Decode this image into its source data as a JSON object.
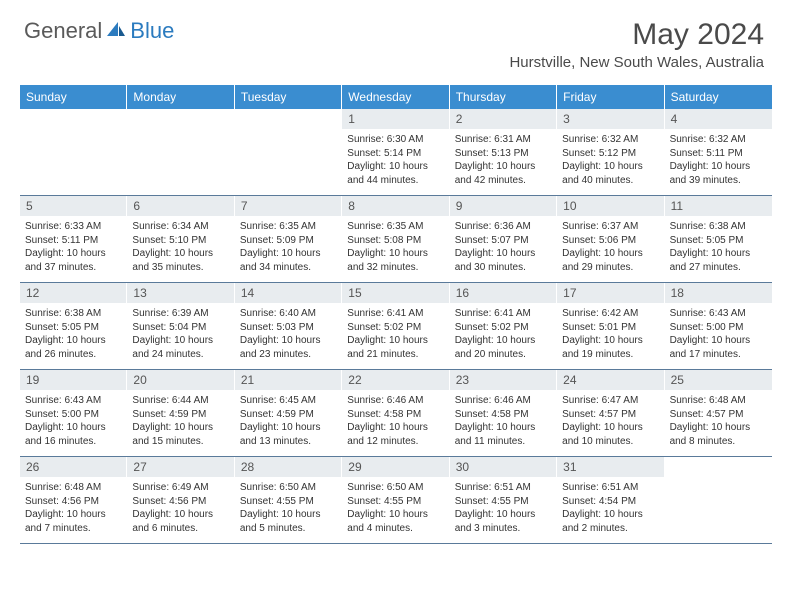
{
  "logo": {
    "text_general": "General",
    "text_blue": "Blue"
  },
  "title": "May 2024",
  "location": "Hurstville, New South Wales, Australia",
  "colors": {
    "header_bg": "#3a8dd0",
    "date_bg": "#e8ecef",
    "row_border": "#5a7a9a",
    "logo_blue": "#2b7bbf",
    "text_gray": "#5a5a5a"
  },
  "day_headers": [
    "Sunday",
    "Monday",
    "Tuesday",
    "Wednesday",
    "Thursday",
    "Friday",
    "Saturday"
  ],
  "weeks": [
    [
      {
        "empty": true
      },
      {
        "empty": true
      },
      {
        "empty": true
      },
      {
        "date": "1",
        "sunrise": "Sunrise: 6:30 AM",
        "sunset": "Sunset: 5:14 PM",
        "daylight1": "Daylight: 10 hours",
        "daylight2": "and 44 minutes."
      },
      {
        "date": "2",
        "sunrise": "Sunrise: 6:31 AM",
        "sunset": "Sunset: 5:13 PM",
        "daylight1": "Daylight: 10 hours",
        "daylight2": "and 42 minutes."
      },
      {
        "date": "3",
        "sunrise": "Sunrise: 6:32 AM",
        "sunset": "Sunset: 5:12 PM",
        "daylight1": "Daylight: 10 hours",
        "daylight2": "and 40 minutes."
      },
      {
        "date": "4",
        "sunrise": "Sunrise: 6:32 AM",
        "sunset": "Sunset: 5:11 PM",
        "daylight1": "Daylight: 10 hours",
        "daylight2": "and 39 minutes."
      }
    ],
    [
      {
        "date": "5",
        "sunrise": "Sunrise: 6:33 AM",
        "sunset": "Sunset: 5:11 PM",
        "daylight1": "Daylight: 10 hours",
        "daylight2": "and 37 minutes."
      },
      {
        "date": "6",
        "sunrise": "Sunrise: 6:34 AM",
        "sunset": "Sunset: 5:10 PM",
        "daylight1": "Daylight: 10 hours",
        "daylight2": "and 35 minutes."
      },
      {
        "date": "7",
        "sunrise": "Sunrise: 6:35 AM",
        "sunset": "Sunset: 5:09 PM",
        "daylight1": "Daylight: 10 hours",
        "daylight2": "and 34 minutes."
      },
      {
        "date": "8",
        "sunrise": "Sunrise: 6:35 AM",
        "sunset": "Sunset: 5:08 PM",
        "daylight1": "Daylight: 10 hours",
        "daylight2": "and 32 minutes."
      },
      {
        "date": "9",
        "sunrise": "Sunrise: 6:36 AM",
        "sunset": "Sunset: 5:07 PM",
        "daylight1": "Daylight: 10 hours",
        "daylight2": "and 30 minutes."
      },
      {
        "date": "10",
        "sunrise": "Sunrise: 6:37 AM",
        "sunset": "Sunset: 5:06 PM",
        "daylight1": "Daylight: 10 hours",
        "daylight2": "and 29 minutes."
      },
      {
        "date": "11",
        "sunrise": "Sunrise: 6:38 AM",
        "sunset": "Sunset: 5:05 PM",
        "daylight1": "Daylight: 10 hours",
        "daylight2": "and 27 minutes."
      }
    ],
    [
      {
        "date": "12",
        "sunrise": "Sunrise: 6:38 AM",
        "sunset": "Sunset: 5:05 PM",
        "daylight1": "Daylight: 10 hours",
        "daylight2": "and 26 minutes."
      },
      {
        "date": "13",
        "sunrise": "Sunrise: 6:39 AM",
        "sunset": "Sunset: 5:04 PM",
        "daylight1": "Daylight: 10 hours",
        "daylight2": "and 24 minutes."
      },
      {
        "date": "14",
        "sunrise": "Sunrise: 6:40 AM",
        "sunset": "Sunset: 5:03 PM",
        "daylight1": "Daylight: 10 hours",
        "daylight2": "and 23 minutes."
      },
      {
        "date": "15",
        "sunrise": "Sunrise: 6:41 AM",
        "sunset": "Sunset: 5:02 PM",
        "daylight1": "Daylight: 10 hours",
        "daylight2": "and 21 minutes."
      },
      {
        "date": "16",
        "sunrise": "Sunrise: 6:41 AM",
        "sunset": "Sunset: 5:02 PM",
        "daylight1": "Daylight: 10 hours",
        "daylight2": "and 20 minutes."
      },
      {
        "date": "17",
        "sunrise": "Sunrise: 6:42 AM",
        "sunset": "Sunset: 5:01 PM",
        "daylight1": "Daylight: 10 hours",
        "daylight2": "and 19 minutes."
      },
      {
        "date": "18",
        "sunrise": "Sunrise: 6:43 AM",
        "sunset": "Sunset: 5:00 PM",
        "daylight1": "Daylight: 10 hours",
        "daylight2": "and 17 minutes."
      }
    ],
    [
      {
        "date": "19",
        "sunrise": "Sunrise: 6:43 AM",
        "sunset": "Sunset: 5:00 PM",
        "daylight1": "Daylight: 10 hours",
        "daylight2": "and 16 minutes."
      },
      {
        "date": "20",
        "sunrise": "Sunrise: 6:44 AM",
        "sunset": "Sunset: 4:59 PM",
        "daylight1": "Daylight: 10 hours",
        "daylight2": "and 15 minutes."
      },
      {
        "date": "21",
        "sunrise": "Sunrise: 6:45 AM",
        "sunset": "Sunset: 4:59 PM",
        "daylight1": "Daylight: 10 hours",
        "daylight2": "and 13 minutes."
      },
      {
        "date": "22",
        "sunrise": "Sunrise: 6:46 AM",
        "sunset": "Sunset: 4:58 PM",
        "daylight1": "Daylight: 10 hours",
        "daylight2": "and 12 minutes."
      },
      {
        "date": "23",
        "sunrise": "Sunrise: 6:46 AM",
        "sunset": "Sunset: 4:58 PM",
        "daylight1": "Daylight: 10 hours",
        "daylight2": "and 11 minutes."
      },
      {
        "date": "24",
        "sunrise": "Sunrise: 6:47 AM",
        "sunset": "Sunset: 4:57 PM",
        "daylight1": "Daylight: 10 hours",
        "daylight2": "and 10 minutes."
      },
      {
        "date": "25",
        "sunrise": "Sunrise: 6:48 AM",
        "sunset": "Sunset: 4:57 PM",
        "daylight1": "Daylight: 10 hours",
        "daylight2": "and 8 minutes."
      }
    ],
    [
      {
        "date": "26",
        "sunrise": "Sunrise: 6:48 AM",
        "sunset": "Sunset: 4:56 PM",
        "daylight1": "Daylight: 10 hours",
        "daylight2": "and 7 minutes."
      },
      {
        "date": "27",
        "sunrise": "Sunrise: 6:49 AM",
        "sunset": "Sunset: 4:56 PM",
        "daylight1": "Daylight: 10 hours",
        "daylight2": "and 6 minutes."
      },
      {
        "date": "28",
        "sunrise": "Sunrise: 6:50 AM",
        "sunset": "Sunset: 4:55 PM",
        "daylight1": "Daylight: 10 hours",
        "daylight2": "and 5 minutes."
      },
      {
        "date": "29",
        "sunrise": "Sunrise: 6:50 AM",
        "sunset": "Sunset: 4:55 PM",
        "daylight1": "Daylight: 10 hours",
        "daylight2": "and 4 minutes."
      },
      {
        "date": "30",
        "sunrise": "Sunrise: 6:51 AM",
        "sunset": "Sunset: 4:55 PM",
        "daylight1": "Daylight: 10 hours",
        "daylight2": "and 3 minutes."
      },
      {
        "date": "31",
        "sunrise": "Sunrise: 6:51 AM",
        "sunset": "Sunset: 4:54 PM",
        "daylight1": "Daylight: 10 hours",
        "daylight2": "and 2 minutes."
      },
      {
        "empty": true
      }
    ]
  ]
}
